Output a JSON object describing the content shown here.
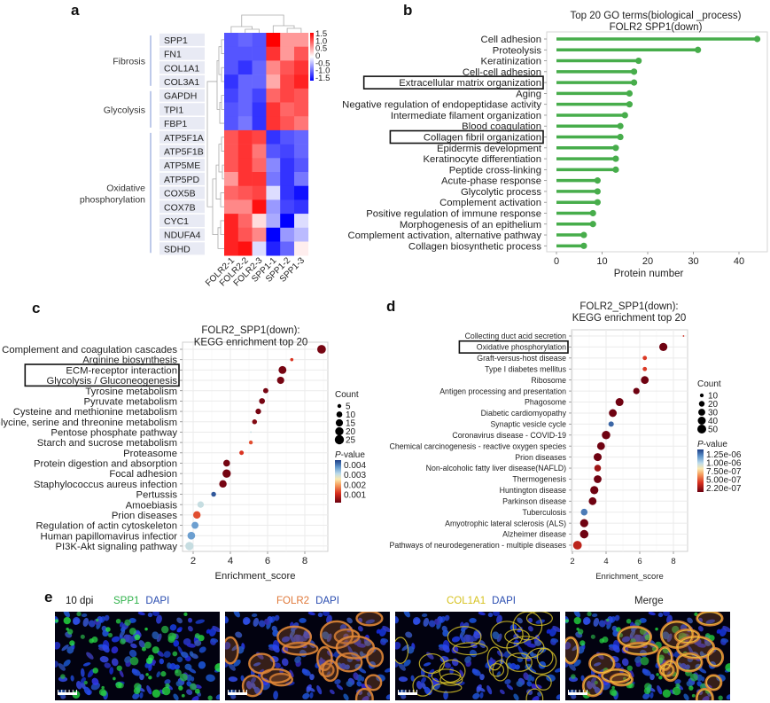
{
  "panels": {
    "a": {
      "letter": "a",
      "groups": [
        {
          "label": "Fibrosis",
          "rows": 4
        },
        {
          "label": "Glycolysis",
          "rows": 3
        },
        {
          "label": "Oxidative phosphorylation",
          "label_lines": [
            "Oxidative",
            "phosphorylation"
          ],
          "rows": 9
        }
      ],
      "legend_ticks": [
        "1.5",
        "1.0",
        "0.5",
        "0",
        "-0.5",
        "-1.0",
        "-1.5"
      ]
    },
    "b": {
      "letter": "b"
    },
    "c": {
      "letter": "c"
    },
    "d": {
      "letter": "d"
    },
    "e": {
      "letter": "e",
      "timepoint": "10 dpi",
      "images": [
        {
          "name": "spp1-dapi",
          "channels": [
            {
              "label": "SPP1",
              "color": "#2fb24a"
            },
            {
              "label": "DAPI",
              "color": "#2a4db0"
            }
          ]
        },
        {
          "name": "folr2-dapi",
          "channels": [
            {
              "label": "FOLR2",
              "color": "#e0793a"
            },
            {
              "label": "DAPI",
              "color": "#2a4db0"
            }
          ]
        },
        {
          "name": "col1a1-dapi",
          "channels": [
            {
              "label": "COL1A1",
              "color": "#d6c21e"
            },
            {
              "label": "DAPI",
              "color": "#2a4db0"
            }
          ]
        },
        {
          "name": "merge",
          "channels": [
            {
              "label": "Merge",
              "color": "#222222"
            }
          ]
        }
      ]
    }
  },
  "colors": {
    "lollipop": "#47ad4b",
    "heat_high": "#ff0000",
    "heat_mid": "#ffffff",
    "heat_low": "#0000ff",
    "pval_low": "#6b0010",
    "pval_high": "#1d3f86"
  },
  "chart_data": [
    {
      "type": "heatmap",
      "panel": "a",
      "rows": [
        "SPP1",
        "FN1",
        "COL1A1",
        "COL3A1",
        "GAPDH",
        "TPI1",
        "FBP1",
        "ATP5F1A",
        "ATP5F1B",
        "ATP5ME",
        "ATP5PD",
        "COX5B",
        "COX7B",
        "CYC1",
        "NDUFA4",
        "SDHD"
      ],
      "columns": [
        "FOLR2-1",
        "FOLR2-2",
        "FOLR2-3",
        "SPP1-1",
        "SPP1-2",
        "SPP1-3"
      ],
      "values": [
        [
          -1.0,
          -0.9,
          -1.0,
          1.5,
          0.6,
          0.6
        ],
        [
          -1.0,
          -1.0,
          -1.0,
          1.2,
          0.6,
          1.0
        ],
        [
          -1.0,
          -1.2,
          -0.9,
          0.7,
          1.0,
          1.2
        ],
        [
          -1.2,
          -0.9,
          -0.9,
          0.5,
          1.1,
          1.3
        ],
        [
          -1.1,
          -0.9,
          -1.1,
          0.9,
          1.1,
          1.0
        ],
        [
          -1.0,
          -0.9,
          -1.2,
          1.2,
          0.9,
          1.0
        ],
        [
          -1.0,
          -0.8,
          -1.2,
          1.2,
          1.0,
          0.8
        ],
        [
          1.0,
          1.2,
          1.1,
          -1.2,
          -1.0,
          -0.9
        ],
        [
          1.0,
          1.2,
          0.8,
          -1.0,
          -1.1,
          -0.9
        ],
        [
          1.0,
          1.2,
          0.9,
          -0.7,
          -1.2,
          -1.0
        ],
        [
          0.6,
          1.2,
          1.2,
          -0.8,
          -1.2,
          -0.8
        ],
        [
          0.9,
          1.0,
          1.1,
          -0.2,
          -1.2,
          -1.4
        ],
        [
          0.7,
          0.7,
          1.4,
          -0.6,
          -1.1,
          -1.2
        ],
        [
          1.3,
          0.9,
          0.2,
          -0.5,
          -1.7,
          -0.2
        ],
        [
          1.3,
          1.0,
          0.7,
          -1.5,
          -0.6,
          -0.4
        ],
        [
          1.3,
          1.4,
          -0.2,
          -1.3,
          -0.9,
          0.1
        ]
      ],
      "color_range": [
        -1.5,
        1.5
      ],
      "legend_ticks": [
        1.5,
        1.0,
        0.5,
        0,
        -0.5,
        -1.0,
        -1.5
      ],
      "row_groups": [
        "Fibrosis",
        "Glycolysis",
        "Oxidative phosphorylation"
      ]
    },
    {
      "type": "bar",
      "style": "lollipop",
      "panel": "b",
      "title": "Top 20 GO terms(biological _process)",
      "subtitle": "FOLR2 SPP1(down)",
      "xlabel": "Protein number",
      "ylabel": "",
      "xlim": [
        0,
        46
      ],
      "xticks": [
        0,
        10,
        20,
        30,
        40
      ],
      "categories": [
        "Cell adhesion",
        "Proteolysis",
        "Keratinization",
        "Cell-cell adhesion",
        "Extracellular matrix organization",
        "Aging",
        "Negative regulation of endopeptidase activity",
        "Intermediate filament organization",
        "Blood coagulation",
        "Collagen fibril organization",
        "Epidermis development",
        "Keratinocyte differentiation",
        "Peptide cross-linking",
        "Acute-phase response",
        "Glycolytic process",
        "Complement activation",
        "Positive regulation of immune response",
        "Morphogenesis of an epithelium",
        "Complement activation, alternative pathway",
        "Collagen biosynthetic process"
      ],
      "values": [
        44,
        31,
        18,
        17,
        17,
        16,
        16,
        15,
        14,
        14,
        13,
        13,
        13,
        9,
        9,
        9,
        8,
        8,
        6,
        6
      ],
      "highlighted": [
        "Extracellular matrix organization",
        "Collagen fibril organization"
      ]
    },
    {
      "type": "scatter",
      "panel": "c",
      "title": "FOLR2_SPP1(down):",
      "subtitle": "KEGG enrichment top 20",
      "xlabel": "Enrichment_score",
      "xlim": [
        1.4,
        9.3
      ],
      "xticks": [
        2,
        4,
        6,
        8
      ],
      "categories": [
        "Complement and coagulation cascades",
        "Arginine biosynthesis",
        "ECM-receptor interaction",
        "Glycolysis / Gluconeogenesis",
        "Tyrosine metabolism",
        "Pyruvate metabolism",
        "Cysteine and methionine metabolism",
        "Glycine, serine and threonine metabolism",
        "Pentose phosphate pathway",
        "Starch and sucrose metabolism",
        "Proteasome",
        "Protein digestion and absorption",
        "Focal adhesion",
        "Staphylococcus aureus infection",
        "Pertussis",
        "Amoebiasis",
        "Prion diseases",
        "Regulation of actin cytoskeleton",
        "Human papillomavirus infectior",
        "PI3K-Akt signaling pathway"
      ],
      "x": [
        8.9,
        7.3,
        6.8,
        6.7,
        5.9,
        5.7,
        5.5,
        5.3,
        5.1,
        5.1,
        4.6,
        3.8,
        3.8,
        3.6,
        3.1,
        2.4,
        2.2,
        2.1,
        1.9,
        1.8
      ],
      "count": [
        22,
        4,
        18,
        15,
        8,
        10,
        9,
        7,
        3,
        5,
        6,
        13,
        20,
        16,
        7,
        12,
        16,
        14,
        17,
        20
      ],
      "pvalue": [
        0.0001,
        0.001,
        0.0001,
        0.0001,
        0.0001,
        0.0001,
        0.0001,
        0.0002,
        0.0029,
        0.0012,
        0.001,
        0.0001,
        0.0001,
        0.0001,
        0.0042,
        0.0029,
        0.0012,
        0.0036,
        0.0036,
        0.0029
      ],
      "highlighted": [
        "ECM-receptor interaction",
        "Glycolysis / Gluconeogenesis"
      ],
      "size_legend": {
        "title": "Count",
        "values": [
          5,
          10,
          15,
          20,
          25
        ]
      },
      "color_legend": {
        "title": "P-value",
        "ticks": [
          "0.004",
          "0.003",
          "0.002",
          "0.001"
        ],
        "range": [
          0.0,
          0.0044
        ]
      }
    },
    {
      "type": "scatter",
      "panel": "d",
      "title": "FOLR2_SPP1(down):",
      "subtitle": "KEGG enrichment top 20",
      "xlabel": "Enrichment_score",
      "xlim": [
        2,
        9
      ],
      "xticks": [
        2,
        4,
        6,
        8
      ],
      "categories": [
        "Collecting duct acid secretion",
        "Oxidative phosphorylation",
        "Graft-versus-host disease",
        "Type I diabetes mellitus",
        "Ribosome",
        "Antigen processing and presentation",
        "Phagosome",
        "Diabetic cardiomyopathy",
        "Synaptic vesicle cycle",
        "Coronavirus disease - COVID-19",
        "Chemical carcinogenesis - reactive oxygen species",
        "Prion diseases",
        "Non-alcoholic fatty liver disease(NAFLD)",
        "Thermogenesis",
        "Huntington disease",
        "Parkinson disease",
        "Tuberculosis",
        "Amyotrophic lateral sclerosis (ALS)",
        "Alzheimer disease",
        "Pathways of neurodegeneration - multiple diseases"
      ],
      "x": [
        8.6,
        7.4,
        6.3,
        6.3,
        6.3,
        5.8,
        4.8,
        4.4,
        4.3,
        4.0,
        3.7,
        3.5,
        3.5,
        3.5,
        3.3,
        3.2,
        2.7,
        2.7,
        2.7,
        2.3
      ],
      "count": [
        5,
        42,
        12,
        12,
        38,
        25,
        40,
        38,
        18,
        45,
        38,
        40,
        28,
        38,
        42,
        38,
        28,
        42,
        45,
        48
      ],
      "pvalue": [
        2.6e-07,
        1e-08,
        3.2e-07,
        3.2e-07,
        1e-08,
        1e-08,
        1e-08,
        1e-08,
        1.25e-06,
        1e-08,
        1e-08,
        1e-08,
        1.4e-07,
        1e-08,
        1e-08,
        1e-08,
        1.2e-06,
        1e-08,
        1e-08,
        2.2e-07
      ],
      "highlighted": [
        "Oxidative phosphorylation"
      ],
      "size_legend": {
        "title": "Count",
        "values": [
          10,
          20,
          30,
          40,
          50
        ]
      },
      "color_legend": {
        "title": "P-value",
        "ticks": [
          "1.25e-06",
          "1.00e-06",
          "7.50e-07",
          "5.00e-07",
          "2.20e-07"
        ],
        "range": [
          0,
          1.35e-06
        ]
      }
    }
  ]
}
